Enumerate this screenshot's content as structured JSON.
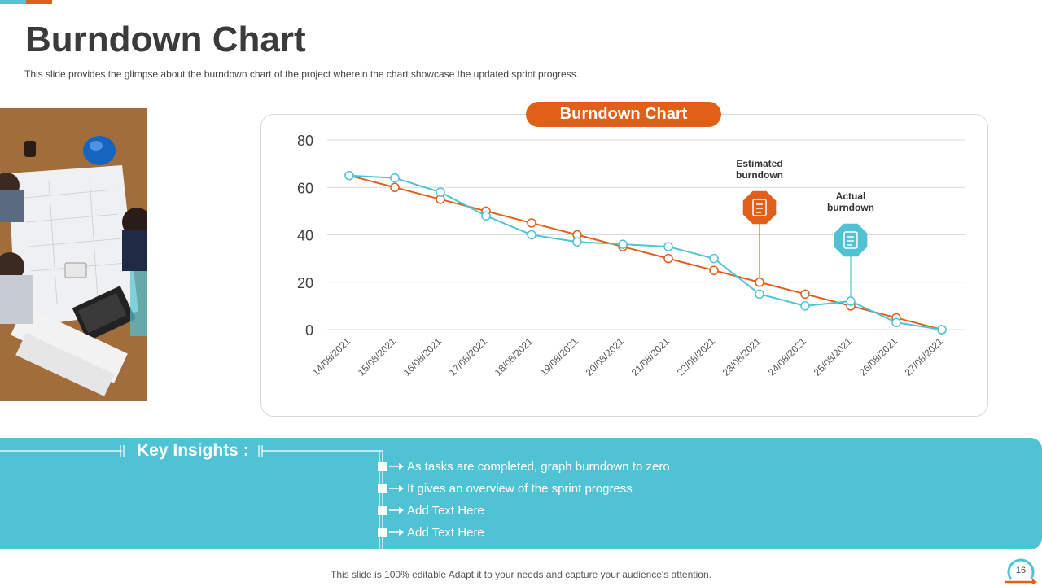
{
  "page": {
    "title": "Burndown Chart",
    "subtitle": "This slide provides the glimpse about the burndown chart of the project wherein the chart showcase the updated sprint progress.",
    "footer": "This slide is 100% editable Adapt it to your needs and capture your audience's attention.",
    "page_number": "16"
  },
  "colors": {
    "orange": "#e0601a",
    "teal": "#4fc3d4",
    "dark_text": "#3b3b3b"
  },
  "chart_data": {
    "type": "line",
    "title": "Burndown Chart",
    "categories": [
      "14/08/2021",
      "15/08/2021",
      "16/08/2021",
      "17/08/2021",
      "18/08/2021",
      "19/08/2021",
      "20/08/2021",
      "21/08/2021",
      "22/08/2021",
      "23/08/2021",
      "24/08/2021",
      "25/08/2021",
      "26/08/2021",
      "27/08/2021"
    ],
    "series": [
      {
        "name": "Estimated burndown",
        "color": "#e0601a",
        "values": [
          65,
          60,
          55,
          50,
          45,
          40,
          35,
          30,
          25,
          20,
          15,
          10,
          5,
          0
        ]
      },
      {
        "name": "Actual burndown",
        "color": "#4fc3d4",
        "values": [
          65,
          64,
          58,
          48,
          40,
          37,
          36,
          35,
          30,
          15,
          10,
          12,
          3,
          0
        ]
      }
    ],
    "ylim": [
      0,
      80
    ],
    "yticks": [
      0,
      20,
      40,
      60,
      80
    ],
    "grid": true,
    "xlabel": "",
    "ylabel": "",
    "annotations": [
      {
        "series": 0,
        "index": 9,
        "text_line1": "Estimated",
        "text_line2": "burndown",
        "icon": "calculator-icon"
      },
      {
        "series": 1,
        "index": 11,
        "text_line1": "Actual",
        "text_line2": "burndown",
        "icon": "document-chart-icon"
      }
    ]
  },
  "insights": {
    "title": "Key Insights :",
    "items": [
      "As tasks are completed, graph burndown to zero",
      "It gives an overview of the sprint progress",
      "Add Text Here",
      "Add Text Here"
    ]
  }
}
